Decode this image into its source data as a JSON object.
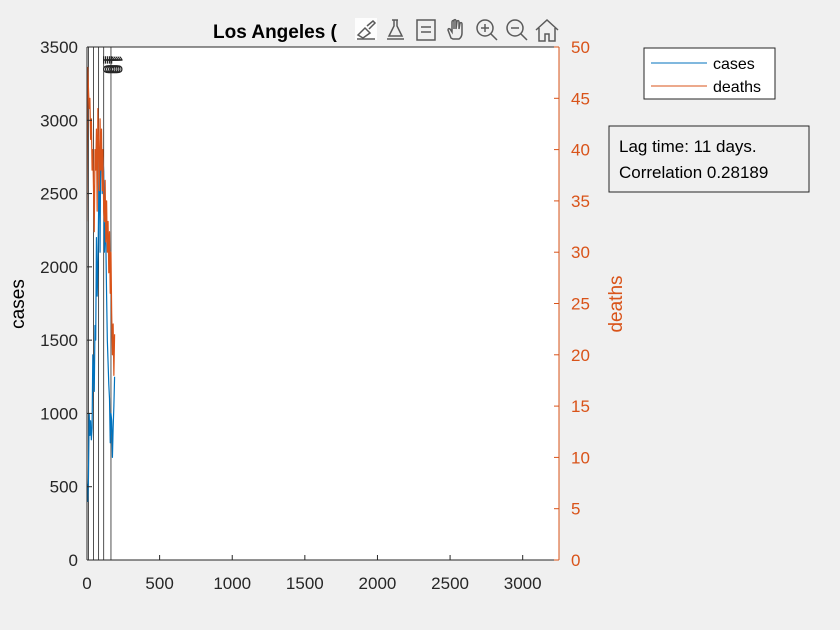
{
  "colors": {
    "background": "#f0f0f0",
    "axes_bg": "#ffffff",
    "cases": "#0072bd",
    "deaths": "#d95319",
    "axis_left": "#262626",
    "axis_right": "#d95319"
  },
  "toolbar": {
    "icons": [
      "brush-icon",
      "data-tips-icon",
      "insert-legend-icon",
      "pan-icon",
      "zoom-in-icon",
      "zoom-out-icon",
      "home-icon"
    ]
  },
  "annotation": {
    "line1": "Lag time: 11 days.",
    "line2": "Correlation 0.28189"
  },
  "chart_data": {
    "type": "line",
    "title": "Los Angeles (",
    "xlabel": "",
    "ylabel": "cases",
    "ylabel_right": "deaths",
    "xlim": [
      0,
      3250
    ],
    "ylim": [
      0,
      3500
    ],
    "ylim_right": [
      0,
      50
    ],
    "xticks": [
      0,
      500,
      1000,
      1500,
      2000,
      2500,
      3000
    ],
    "yticks": [
      0,
      500,
      1000,
      1500,
      2000,
      2500,
      3000,
      3500
    ],
    "yticks_right": [
      0,
      5,
      10,
      15,
      20,
      25,
      30,
      35,
      40,
      45,
      50
    ],
    "grid": false,
    "legend": {
      "location": "top-right outside",
      "entries": [
        "cases",
        "deaths"
      ]
    },
    "vertical_lines_x": [
      10,
      45,
      80,
      115,
      165
    ],
    "vertical_text_label": "10",
    "series": [
      {
        "name": "cases",
        "axis": "left",
        "x": [
          0,
          5,
          10,
          15,
          20,
          25,
          30,
          35,
          40,
          45,
          50,
          55,
          60,
          65,
          70,
          75,
          80,
          85,
          90,
          95,
          100,
          105,
          110,
          115,
          120,
          125,
          130,
          135,
          140,
          145,
          150,
          155,
          160,
          165,
          170,
          175,
          180,
          185,
          190
        ],
        "values": [
          520,
          400,
          560,
          1000,
          850,
          950,
          820,
          900,
          1400,
          1300,
          1150,
          1600,
          1500,
          2200,
          1800,
          2000,
          2400,
          2700,
          2100,
          2900,
          2800,
          2500,
          2750,
          2650,
          2100,
          2300,
          2150,
          1800,
          1500,
          1350,
          1200,
          1100,
          800,
          1000,
          950,
          700,
          900,
          1050,
          1250
        ]
      },
      {
        "name": "deaths",
        "axis": "right",
        "x": [
          0,
          5,
          10,
          15,
          20,
          25,
          30,
          35,
          40,
          45,
          50,
          55,
          60,
          65,
          70,
          75,
          80,
          85,
          90,
          95,
          100,
          105,
          110,
          115,
          120,
          125,
          130,
          135,
          140,
          145,
          150,
          155,
          160,
          165,
          170,
          175,
          180,
          185,
          190
        ],
        "values": [
          33,
          48,
          46,
          44,
          45,
          41,
          43,
          38,
          40,
          36,
          32,
          40,
          38,
          42,
          34,
          44,
          40,
          36,
          43,
          38,
          42,
          36,
          40,
          34,
          33,
          37,
          31,
          35,
          30,
          33,
          28,
          32,
          26,
          30,
          24,
          20,
          23,
          18,
          22
        ]
      }
    ]
  }
}
